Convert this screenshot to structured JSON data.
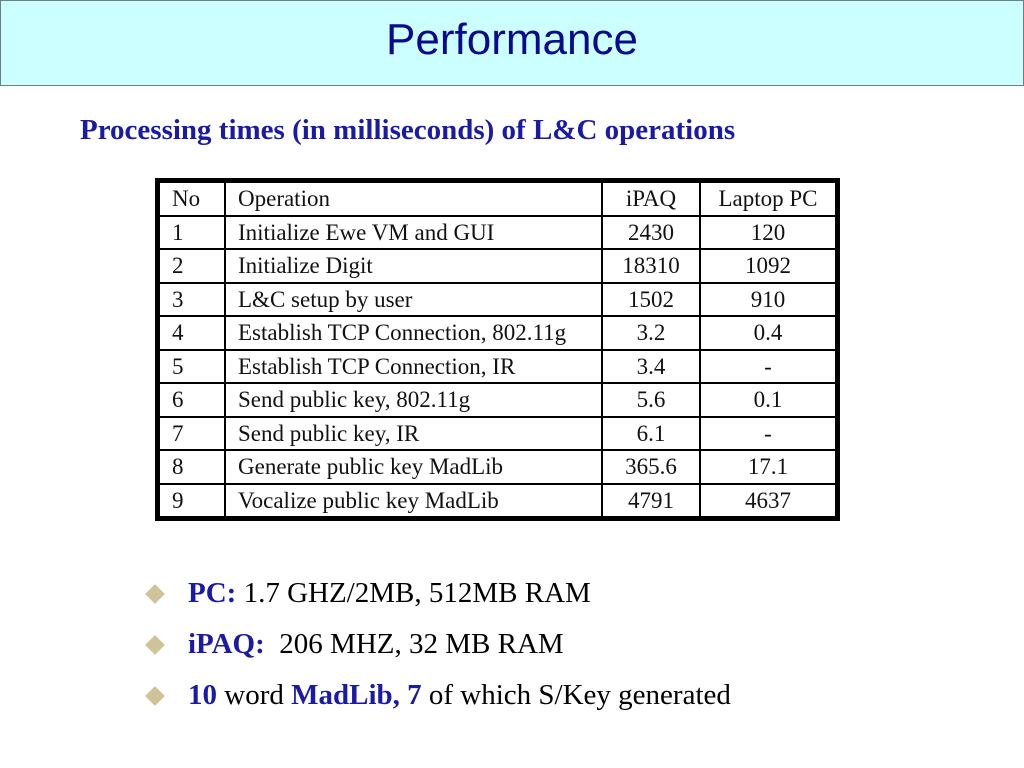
{
  "slide": {
    "title": "Performance",
    "subtitle": "Processing times (in milliseconds) of L&C operations"
  },
  "table": {
    "headers": [
      "No",
      "Operation",
      "iPAQ",
      "Laptop PC"
    ],
    "rows": [
      [
        "1",
        "Initialize Ewe VM and GUI",
        "2430",
        "120"
      ],
      [
        "2",
        "Initialize Digit",
        "18310",
        "1092"
      ],
      [
        "3",
        "L&C setup by user",
        "1502",
        "910"
      ],
      [
        "4",
        "Establish TCP Connection, 802.11g",
        "3.2",
        "0.4"
      ],
      [
        "5",
        "Establish TCP Connection, IR",
        "3.4",
        "-"
      ],
      [
        "6",
        "Send public key, 802.11g",
        "5.6",
        "0.1"
      ],
      [
        "7",
        "Send public key, IR",
        "6.1",
        "-"
      ],
      [
        "8",
        "Generate public key MadLib",
        "365.6",
        "17.1"
      ],
      [
        "9",
        "Vocalize public key MadLib",
        "4791",
        "4637"
      ]
    ]
  },
  "bullets": [
    {
      "label": "PC:",
      "text": " 1.7 GHZ/2MB, 512MB RAM"
    },
    {
      "label": "iPAQ:",
      "text": "  206 MHZ, 32 MB RAM"
    },
    {
      "parts": [
        "10",
        " word ",
        "MadLib, 7",
        " of which S/Key generated"
      ]
    }
  ],
  "colors": {
    "title_bg": "#ccffff",
    "title_text": "#0a0a8c",
    "accent_blue": "#1a1aa6",
    "bullet_diamond": "#cfc39a"
  }
}
